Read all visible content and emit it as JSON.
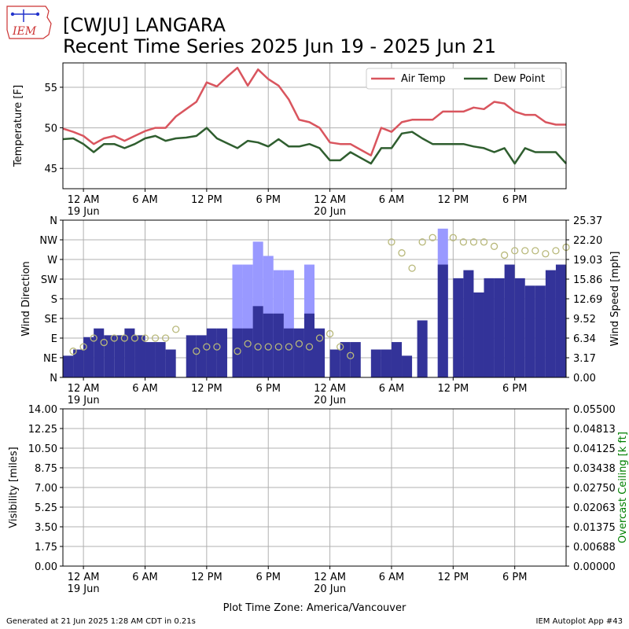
{
  "header": {
    "logo_text": "IEM",
    "title_line1": "[CWJU] LANGARA",
    "title_line2": "Recent Time Series 2025 Jun 19 - 2025 Jun 21"
  },
  "footer": {
    "generated": "Generated at 21 Jun 2025 1:28 AM CDT in 0.21s",
    "app": "IEM Autoplot App #43",
    "xlabel": "Plot Time Zone: America/Vancouver"
  },
  "colors": {
    "air_temp": "#d9555e",
    "dew_point": "#2f5e2f",
    "wind_speed": "#333399",
    "wind_gust": "#9999ff",
    "wind_dir_marker": "#b8b87a",
    "grid": "#b0b0b0",
    "ceiling_axis": "#008000"
  },
  "x_axis": {
    "start_hour": -2,
    "end_hour": 47,
    "ticks": [
      {
        "hour": 0,
        "label": "12 AM",
        "sub": "19 Jun"
      },
      {
        "hour": 6,
        "label": "6 AM",
        "sub": ""
      },
      {
        "hour": 12,
        "label": "12 PM",
        "sub": ""
      },
      {
        "hour": 18,
        "label": "6 PM",
        "sub": ""
      },
      {
        "hour": 24,
        "label": "12 AM",
        "sub": "20 Jun"
      },
      {
        "hour": 30,
        "label": "6 AM",
        "sub": ""
      },
      {
        "hour": 36,
        "label": "12 PM",
        "sub": ""
      },
      {
        "hour": 42,
        "label": "6 PM",
        "sub": ""
      }
    ]
  },
  "chart_data": [
    {
      "type": "line",
      "ylabel": "Temperature [F]",
      "ylim": [
        42.5,
        58
      ],
      "yticks": [
        45,
        50,
        55
      ],
      "legend": {
        "position": "top-right",
        "entries": [
          "Air Temp",
          "Dew Point"
        ]
      },
      "x": [
        -2,
        -1,
        0,
        1,
        2,
        3,
        4,
        5,
        6,
        7,
        8,
        9,
        10,
        11,
        12,
        13,
        14,
        15,
        16,
        17,
        18,
        19,
        20,
        21,
        22,
        23,
        24,
        25,
        26,
        27,
        28,
        29,
        30,
        31,
        32,
        33,
        34,
        35,
        36,
        37,
        38,
        39,
        40,
        41,
        42,
        43,
        44,
        45,
        46,
        47
      ],
      "series": [
        {
          "name": "Air Temp",
          "values": [
            49.9,
            49.5,
            49.0,
            48.0,
            48.7,
            49.0,
            48.4,
            49.0,
            49.6,
            50.0,
            50.0,
            51.4,
            52.3,
            53.2,
            55.6,
            55.1,
            56.3,
            57.4,
            55.2,
            57.2,
            56.0,
            55.2,
            53.5,
            51.0,
            50.7,
            50.0,
            48.2,
            48.0,
            48.0,
            47.3,
            46.6,
            50.0,
            49.5,
            50.7,
            51.0,
            51.0,
            51.0,
            52.0,
            52.0,
            52.0,
            52.5,
            52.3,
            53.2,
            53.0,
            52.0,
            51.6,
            51.6,
            50.7,
            50.4,
            50.4
          ]
        },
        {
          "name": "Dew Point",
          "values": [
            48.6,
            48.7,
            48.0,
            47.0,
            48.0,
            48.0,
            47.5,
            48.0,
            48.7,
            49.0,
            48.4,
            48.7,
            48.8,
            49.0,
            50.0,
            48.7,
            48.1,
            47.5,
            48.4,
            48.2,
            47.7,
            48.6,
            47.7,
            47.7,
            48.0,
            47.5,
            46.0,
            46.0,
            47.0,
            46.3,
            45.6,
            47.5,
            47.5,
            49.3,
            49.5,
            48.7,
            48.0,
            48.0,
            48.0,
            48.0,
            47.7,
            47.5,
            47.0,
            47.5,
            45.6,
            47.5,
            47.0,
            47.0,
            47.0,
            45.6
          ]
        }
      ]
    },
    {
      "type": "bar",
      "ylabel_left": "Wind Direction",
      "ylabel_right": "Wind Speed [mph]",
      "direction_ticks": [
        "N",
        "NE",
        "E",
        "SE",
        "S",
        "SW",
        "W",
        "NW",
        "N"
      ],
      "speed_ticks": [
        "0.00",
        "3.17",
        "6.34",
        "9.52",
        "12.69",
        "15.86",
        "19.03",
        "22.20",
        "25.37"
      ],
      "speed_max": 25.37,
      "bars": [
        {
          "hour": -1.5,
          "speed": 3.5,
          "gust": null
        },
        {
          "hour": -0.5,
          "speed": 4.5,
          "gust": null
        },
        {
          "hour": 0.5,
          "speed": 6.5,
          "gust": null
        },
        {
          "hour": 1.5,
          "speed": 7.9,
          "gust": null
        },
        {
          "hour": 2.5,
          "speed": 6.8,
          "gust": null
        },
        {
          "hour": 3.5,
          "speed": 6.8,
          "gust": null
        },
        {
          "hour": 4.5,
          "speed": 7.9,
          "gust": null
        },
        {
          "hour": 5.5,
          "speed": 6.8,
          "gust": null
        },
        {
          "hour": 6.5,
          "speed": 5.7,
          "gust": null
        },
        {
          "hour": 7.5,
          "speed": 5.7,
          "gust": null
        },
        {
          "hour": 8.5,
          "speed": 4.5,
          "gust": null
        },
        {
          "hour": 10.5,
          "speed": 6.8,
          "gust": null
        },
        {
          "hour": 11.5,
          "speed": 6.8,
          "gust": null
        },
        {
          "hour": 12.5,
          "speed": 7.9,
          "gust": null
        },
        {
          "hour": 13.5,
          "speed": 7.9,
          "gust": null
        },
        {
          "hour": 15.0,
          "speed": 7.9,
          "gust": 18.2
        },
        {
          "hour": 16.0,
          "speed": 7.9,
          "gust": 18.2
        },
        {
          "hour": 17.0,
          "speed": 11.5,
          "gust": 21.9
        },
        {
          "hour": 18.0,
          "speed": 10.3,
          "gust": 19.6
        },
        {
          "hour": 19.0,
          "speed": 10.3,
          "gust": 17.3
        },
        {
          "hour": 20.0,
          "speed": 7.9,
          "gust": 17.3
        },
        {
          "hour": 21.0,
          "speed": 7.9,
          "gust": null
        },
        {
          "hour": 22.0,
          "speed": 10.3,
          "gust": 18.2
        },
        {
          "hour": 23.0,
          "speed": 7.9,
          "gust": null
        },
        {
          "hour": 24.5,
          "speed": 4.5,
          "gust": null
        },
        {
          "hour": 25.5,
          "speed": 5.7,
          "gust": null
        },
        {
          "hour": 26.5,
          "speed": 5.7,
          "gust": null
        },
        {
          "hour": 28.5,
          "speed": 4.5,
          "gust": null
        },
        {
          "hour": 29.5,
          "speed": 4.5,
          "gust": null
        },
        {
          "hour": 30.5,
          "speed": 5.7,
          "gust": null
        },
        {
          "hour": 31.5,
          "speed": 3.5,
          "gust": null
        },
        {
          "hour": 33.0,
          "speed": 9.2,
          "gust": null
        },
        {
          "hour": 35.0,
          "speed": 18.2,
          "gust": 24.0
        },
        {
          "hour": 36.5,
          "speed": 16.0,
          "gust": null
        },
        {
          "hour": 37.5,
          "speed": 17.3,
          "gust": null
        },
        {
          "hour": 38.5,
          "speed": 13.7,
          "gust": null
        },
        {
          "hour": 39.5,
          "speed": 16.0,
          "gust": null
        },
        {
          "hour": 40.5,
          "speed": 16.0,
          "gust": null
        },
        {
          "hour": 41.5,
          "speed": 18.2,
          "gust": null
        },
        {
          "hour": 42.5,
          "speed": 16.0,
          "gust": null
        },
        {
          "hour": 43.5,
          "speed": 14.8,
          "gust": null
        },
        {
          "hour": 44.5,
          "speed": 14.8,
          "gust": null
        },
        {
          "hour": 45.5,
          "speed": 17.3,
          "gust": null
        },
        {
          "hour": 46.5,
          "speed": 18.2,
          "gust": null
        },
        {
          "hour": 47.5,
          "speed": 15.2,
          "gust": null
        }
      ],
      "directions_deg": [
        {
          "hour": -1,
          "deg": 60
        },
        {
          "hour": 0,
          "deg": 70
        },
        {
          "hour": 1,
          "deg": 90
        },
        {
          "hour": 2,
          "deg": 80
        },
        {
          "hour": 3,
          "deg": 90
        },
        {
          "hour": 4,
          "deg": 90
        },
        {
          "hour": 5,
          "deg": 90
        },
        {
          "hour": 6,
          "deg": 90
        },
        {
          "hour": 7,
          "deg": 90
        },
        {
          "hour": 8,
          "deg": 90
        },
        {
          "hour": 9,
          "deg": 110
        },
        {
          "hour": 11,
          "deg": 60
        },
        {
          "hour": 12,
          "deg": 70
        },
        {
          "hour": 13,
          "deg": 70
        },
        {
          "hour": 15,
          "deg": 60
        },
        {
          "hour": 16,
          "deg": 77
        },
        {
          "hour": 17,
          "deg": 70
        },
        {
          "hour": 18,
          "deg": 70
        },
        {
          "hour": 19,
          "deg": 70
        },
        {
          "hour": 20,
          "deg": 70
        },
        {
          "hour": 21,
          "deg": 77
        },
        {
          "hour": 22,
          "deg": 70
        },
        {
          "hour": 23,
          "deg": 90
        },
        {
          "hour": 24,
          "deg": 100
        },
        {
          "hour": 25,
          "deg": 70
        },
        {
          "hour": 26,
          "deg": 50
        },
        {
          "hour": 30,
          "deg": 310
        },
        {
          "hour": 31,
          "deg": 285
        },
        {
          "hour": 32,
          "deg": 250
        },
        {
          "hour": 33,
          "deg": 310
        },
        {
          "hour": 34,
          "deg": 320
        },
        {
          "hour": 36,
          "deg": 320
        },
        {
          "hour": 37,
          "deg": 310
        },
        {
          "hour": 38,
          "deg": 310
        },
        {
          "hour": 39,
          "deg": 310
        },
        {
          "hour": 40,
          "deg": 300
        },
        {
          "hour": 41,
          "deg": 280
        },
        {
          "hour": 42,
          "deg": 290
        },
        {
          "hour": 43,
          "deg": 290
        },
        {
          "hour": 44,
          "deg": 290
        },
        {
          "hour": 45,
          "deg": 283
        },
        {
          "hour": 46,
          "deg": 290
        },
        {
          "hour": 47,
          "deg": 298
        },
        {
          "hour": 48,
          "deg": 280
        }
      ]
    },
    {
      "type": "line",
      "ylabel_left": "Visibility [miles]",
      "ylabel_right": "Overcast Ceiling [k ft]",
      "vis_ticks": [
        "0.00",
        "1.75",
        "3.50",
        "5.25",
        "7.00",
        "8.75",
        "10.50",
        "12.25",
        "14.00"
      ],
      "ceiling_ticks": [
        "0.00000",
        "0.00688",
        "0.01375",
        "0.02063",
        "0.02750",
        "0.03438",
        "0.04125",
        "0.04813",
        "0.05500"
      ],
      "series": []
    }
  ]
}
